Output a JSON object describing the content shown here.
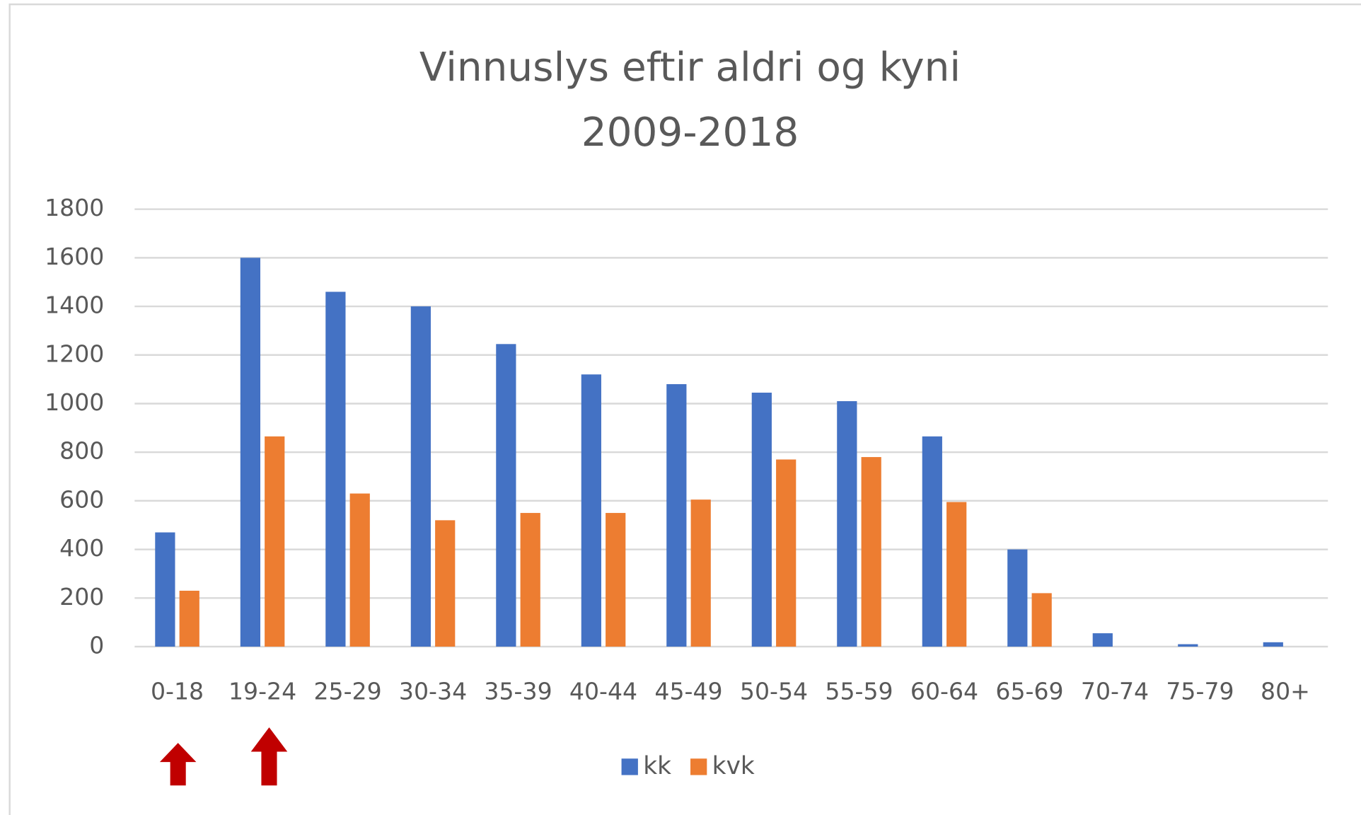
{
  "chart_data": {
    "type": "bar",
    "title": "Vinnuslys eftir aldri og kyni",
    "subtitle": "2009-2018",
    "categories": [
      "0-18",
      "19-24",
      "25-29",
      "30-34",
      "35-39",
      "40-44",
      "45-49",
      "50-54",
      "55-59",
      "60-64",
      "65-69",
      "70-74",
      "75-79",
      "80+"
    ],
    "series": [
      {
        "name": "kk",
        "color": "#4472c4",
        "values": [
          470,
          1600,
          1460,
          1400,
          1245,
          1120,
          1080,
          1045,
          1010,
          865,
          400,
          55,
          10,
          18
        ]
      },
      {
        "name": "kvk",
        "color": "#ed7d31",
        "values": [
          230,
          865,
          630,
          520,
          550,
          550,
          605,
          770,
          780,
          595,
          220,
          0,
          0,
          0
        ]
      }
    ],
    "ylim": [
      0,
      1800
    ],
    "yticks": [
      0,
      200,
      400,
      600,
      800,
      1000,
      1200,
      1400,
      1600,
      1800
    ],
    "grid": true,
    "legend": "bottom"
  }
}
